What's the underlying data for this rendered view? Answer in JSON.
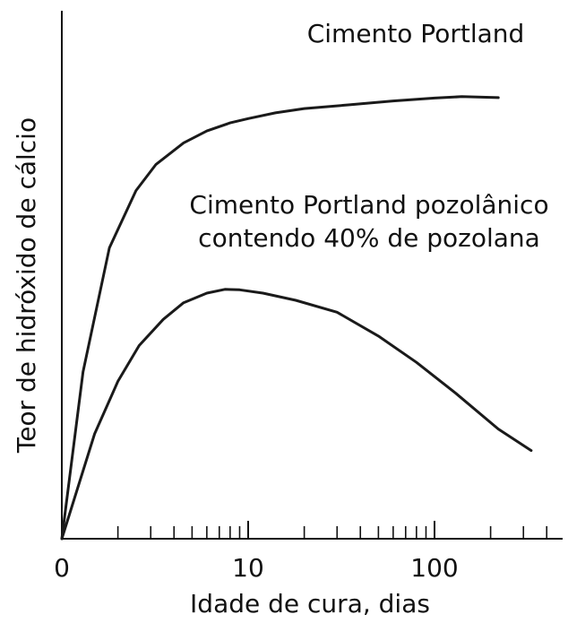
{
  "chart_data": {
    "type": "line",
    "title": "",
    "xlabel": "Idade de cura, dias",
    "ylabel": "Teor de hidróxido de cálcio",
    "x_scale": "log",
    "xlim": [
      1,
      450
    ],
    "ylim": [
      0,
      100
    ],
    "x_ticks_labeled": [
      "0",
      "10",
      "100"
    ],
    "x_minor_ticks": [
      2,
      3,
      4,
      5,
      6,
      7,
      8,
      9,
      20,
      30,
      40,
      50,
      60,
      70,
      80,
      90,
      200,
      300,
      400
    ],
    "grid": false,
    "legend": "none",
    "series": [
      {
        "name": "Cimento Portland",
        "label_lines": [
          "Cimento Portland"
        ],
        "x": [
          1,
          1.3,
          1.8,
          2.5,
          3.2,
          4.5,
          6,
          8,
          10,
          14,
          20,
          35,
          60,
          100,
          140,
          220
        ],
        "y": [
          0,
          35,
          61,
          73,
          78.5,
          83,
          85.5,
          87.2,
          88.1,
          89.3,
          90.2,
          91,
          91.8,
          92.4,
          92.7,
          92.5
        ]
      },
      {
        "name": "Cimento Portland pozolânico contendo 40% de pozolana",
        "label_lines": [
          "Cimento Portland pozolânico",
          "contendo 40% de pozolana"
        ],
        "x": [
          1,
          1.5,
          2,
          2.6,
          3.5,
          4.5,
          6,
          7.5,
          9,
          12,
          18,
          30,
          50,
          80,
          130,
          220,
          330
        ],
        "y": [
          0,
          22,
          33,
          40.5,
          46,
          49.5,
          51.5,
          52.3,
          52.2,
          51.5,
          50,
          47.5,
          42.5,
          37,
          30.5,
          23,
          18.5
        ]
      }
    ]
  }
}
